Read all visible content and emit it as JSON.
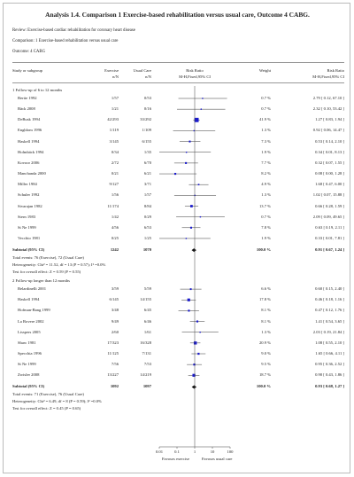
{
  "header": {
    "title": "Analysis 1.4.   Comparison 1 Exercise-based rehabilitation versus usual care, Outcome 4 CABG.",
    "review": "Review:   Exercise-based cardiac rehabilitation for coronary heart disease",
    "comparison": "Comparison:   1 Exercise-based rehabilitation versus usual care",
    "outcome": "Outcome:   4 CABG"
  },
  "columns": {
    "study": "Study or subgroup",
    "exercise": "Exercise",
    "exercise_sub": "n/N",
    "usual": "Usual Care",
    "usual_sub": "n/N",
    "rr_plot": "Risk Ratio",
    "rr_plot_sub": "M-H,Fixed,95% CI",
    "weight": "Weight",
    "rr_text": "Risk Ratio",
    "rr_text_sub": "M-H,Fixed,95% CI"
  },
  "axis": {
    "ticks": [
      "0.01",
      "0.1",
      "1",
      "10",
      "100"
    ],
    "tick_values": [
      0.01,
      0.1,
      1,
      10,
      100
    ],
    "favours_left": "Favours exercise",
    "favours_right": "Favours usual care"
  },
  "chart_data": {
    "type": "forest",
    "x_scale": "log",
    "xlim": [
      0.01,
      100
    ],
    "groups": [
      {
        "label": "1 Follow-up of 6 to 12 months",
        "studies": [
          {
            "name": "Bertie 1992",
            "exercise": "1/57",
            "usual": "0/53",
            "weight": "0.7 %",
            "rr_text": "2.79 [ 0.12, 67.10 ]",
            "rr": 2.79,
            "lo": 0.12,
            "hi": 67.1,
            "w": 0.7
          },
          {
            "name": "Bäck 2008",
            "exercise": "1/21",
            "usual": "0/16",
            "weight": "0.7 %",
            "rr_text": "2.32 [ 0.10, 53.42 ]",
            "rr": 2.32,
            "lo": 0.1,
            "hi": 53.42,
            "w": 0.7
          },
          {
            "name": "DeBusk 1994",
            "exercise": "42/293",
            "usual": "33/292",
            "weight": "41.9 %",
            "rr_text": "1.27 [ 0.83, 1.94 ]",
            "rr": 1.27,
            "lo": 0.83,
            "hi": 1.94,
            "w": 41.9
          },
          {
            "name": "Engblom 1996",
            "exercise": "1/119",
            "usual": "1/109",
            "weight": "1.3 %",
            "rr_text": "0.92 [ 0.06, 14.47 ]",
            "rr": 0.92,
            "lo": 0.06,
            "hi": 14.47,
            "w": 1.3
          },
          {
            "name": "Haskell 1994",
            "exercise": "3/145",
            "usual": "6/155",
            "weight": "7.3 %",
            "rr_text": "0.53 [ 0.14, 2.10 ]",
            "rr": 0.53,
            "lo": 0.14,
            "hi": 2.1,
            "w": 7.3
          },
          {
            "name": "Holmbäck 1994",
            "exercise": "0/34",
            "usual": "1/35",
            "weight": "1.9 %",
            "rr_text": "0.34 [ 0.01, 8.13 ]",
            "rr": 0.34,
            "lo": 0.01,
            "hi": 8.13,
            "w": 1.9
          },
          {
            "name": "Kovoor 2006",
            "exercise": "2/72",
            "usual": "6/70",
            "weight": "7.7 %",
            "rr_text": "0.32 [ 0.07, 1.55 ]",
            "rr": 0.32,
            "lo": 0.07,
            "hi": 1.55,
            "w": 7.7
          },
          {
            "name": "Manchanda 2000",
            "exercise": "0/21",
            "usual": "6/21",
            "weight": "8.2 %",
            "rr_text": "0.08 [ 0.00, 1.28 ]",
            "rr": 0.08,
            "lo": 0.003,
            "hi": 1.28,
            "w": 8.2
          },
          {
            "name": "Miller 1984",
            "exercise": "9/127",
            "usual": "3/71",
            "weight": "4.9 %",
            "rr_text": "1.68 [ 0.47, 6.00 ]",
            "rr": 1.68,
            "lo": 0.47,
            "hi": 6.0,
            "w": 4.9
          },
          {
            "name": "Schuler 1992",
            "exercise": "1/56",
            "usual": "1/57",
            "weight": "1.3 %",
            "rr_text": "1.02 [ 0.07, 15.88 ]",
            "rr": 1.02,
            "lo": 0.07,
            "hi": 15.88,
            "w": 1.3
          },
          {
            "name": "Sivarajan 1982",
            "exercise": "11/174",
            "usual": "8/84",
            "weight": "13.7 %",
            "rr_text": "0.66 [ 0.28, 1.59 ]",
            "rr": 0.66,
            "lo": 0.28,
            "hi": 1.59,
            "w": 13.7
          },
          {
            "name": "Stern 1983",
            "exercise": "1/42",
            "usual": "0/29",
            "weight": "0.7 %",
            "rr_text": "2.09 [ 0.09, 49.65 ]",
            "rr": 2.09,
            "lo": 0.09,
            "hi": 49.65,
            "w": 0.7
          },
          {
            "name": "St  Ne 1999",
            "exercise": "4/56",
            "usual": "6/53",
            "weight": "7.8 %",
            "rr_text": "0.63 [ 0.19, 2.11 ]",
            "rr": 0.63,
            "lo": 0.19,
            "hi": 2.11,
            "w": 7.8
          },
          {
            "name": "Vecchio 1981",
            "exercise": "0/25",
            "usual": "1/25",
            "weight": "1.9 %",
            "rr_text": "0.33 [ 0.01, 7.81 ]",
            "rr": 0.33,
            "lo": 0.01,
            "hi": 7.81,
            "w": 1.9
          }
        ],
        "subtotal": {
          "label": "Subtotal (95% CI)",
          "exercise": "1242",
          "usual": "1070",
          "weight": "100.0 %",
          "rr_text": "0.91  [ 0.67, 1.24 ]",
          "rr": 0.91,
          "lo": 0.67,
          "hi": 1.24
        },
        "stats": [
          "Total events: 76 (Exercise), 72 (Usual Care)",
          "Heterogeneity: Chi² = 11.52, df = 13 (P = 0.57); I² =0.0%",
          "Test for overall effect: Z = 0.59 (P = 0.55)"
        ]
      },
      {
        "label": "2 Follow-up longer than 12 months",
        "studies": [
          {
            "name": "Belardinelli 2001",
            "exercise": "3/59",
            "usual": "5/59",
            "weight": "6.6 %",
            "rr_text": "0.60 [ 0.15, 2.40 ]",
            "rr": 0.6,
            "lo": 0.15,
            "hi": 2.4,
            "w": 6.6
          },
          {
            "name": "Haskell 1994",
            "exercise": "6/145",
            "usual": "14/155",
            "weight": "17.8 %",
            "rr_text": "0.46 [ 0.18, 1.16 ]",
            "rr": 0.46,
            "lo": 0.18,
            "hi": 1.16,
            "w": 17.8
          },
          {
            "name": "Hofman-Bang 1999",
            "exercise": "3/48",
            "usual": "6/45",
            "weight": "8.1 %",
            "rr_text": "0.47 [ 0.12, 1.76 ]",
            "rr": 0.47,
            "lo": 0.12,
            "hi": 1.76,
            "w": 8.1
          },
          {
            "name": "La Rovere 2002",
            "exercise": "9/49",
            "usual": "6/46",
            "weight": "8.1 %",
            "rr_text": "1.41 [ 0.54, 3.65 ]",
            "rr": 1.41,
            "lo": 0.54,
            "hi": 3.65,
            "w": 8.1
          },
          {
            "name": "Lisspers 2005",
            "exercise": "2/60",
            "usual": "1/61",
            "weight": "1.3 %",
            "rr_text": "2.03 [ 0.19, 21.84 ]",
            "rr": 2.03,
            "lo": 0.19,
            "hi": 21.84,
            "w": 1.3
          },
          {
            "name": "Shaw 1981",
            "exercise": "17/323",
            "usual": "16/328",
            "weight": "20.9 %",
            "rr_text": "1.08 [ 0.55, 2.10 ]",
            "rr": 1.08,
            "lo": 0.55,
            "hi": 2.1,
            "w": 20.9
          },
          {
            "name": "Specchia 1996",
            "exercise": "11/125",
            "usual": "7/131",
            "weight": "9.0 %",
            "rr_text": "1.65 [ 0.66, 4.11 ]",
            "rr": 1.65,
            "lo": 0.66,
            "hi": 4.11,
            "w": 9.0
          },
          {
            "name": "St  Ne 1999",
            "exercise": "7/56",
            "usual": "7/53",
            "weight": "9.5 %",
            "rr_text": "0.95 [ 0.36, 2.52 ]",
            "rr": 0.95,
            "lo": 0.36,
            "hi": 2.52,
            "w": 9.5
          },
          {
            "name": "Zwisler 2008",
            "exercise": "13/227",
            "usual": "14/219",
            "weight": "18.7 %",
            "rr_text": "0.90 [ 0.43, 1.86 ]",
            "rr": 0.9,
            "lo": 0.43,
            "hi": 1.86,
            "w": 18.7
          }
        ],
        "subtotal": {
          "label": "Subtotal (95% CI)",
          "exercise": "1092",
          "usual": "1097",
          "weight": "100.0 %",
          "rr_text": "0.93  [ 0.68, 1.27 ]",
          "rr": 0.93,
          "lo": 0.68,
          "hi": 1.27
        },
        "stats": [
          "Total events: 71 (Exercise), 76 (Usual Care)",
          "Heterogeneity: Chi² = 6.49, df = 8 (P = 0.59); I² =0.0%",
          "Test for overall effect: Z = 0.45 (P = 0.65)"
        ]
      }
    ]
  }
}
